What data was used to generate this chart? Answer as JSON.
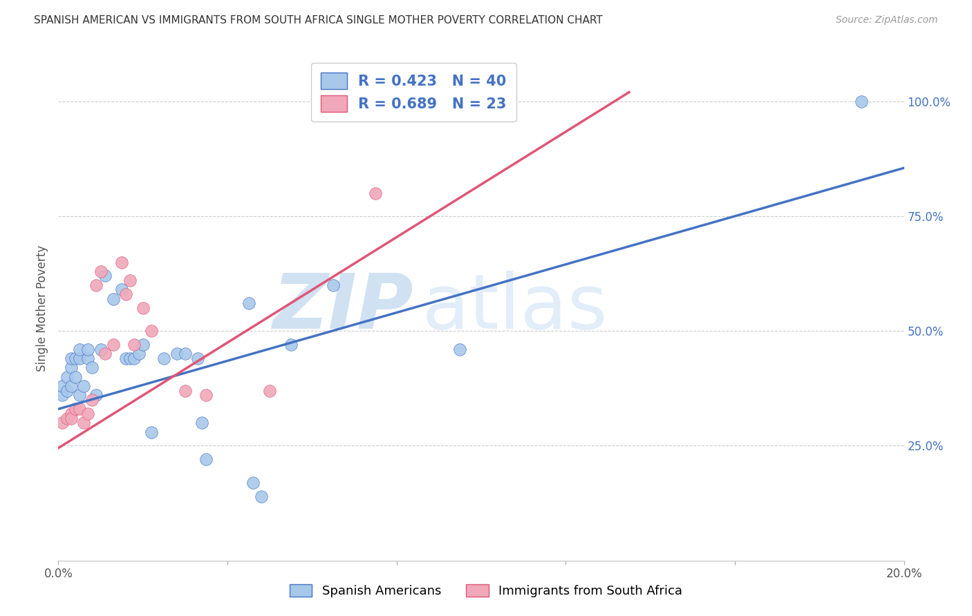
{
  "title": "SPANISH AMERICAN VS IMMIGRANTS FROM SOUTH AFRICA SINGLE MOTHER POVERTY CORRELATION CHART",
  "source": "Source: ZipAtlas.com",
  "ylabel": "Single Mother Poverty",
  "xlim": [
    0.0,
    0.2
  ],
  "ylim": [
    0.0,
    1.1
  ],
  "xtick_vals": [
    0.0,
    0.04,
    0.08,
    0.12,
    0.16,
    0.2
  ],
  "xtick_labels": [
    "0.0%",
    "",
    "",
    "",
    "",
    "20.0%"
  ],
  "ytick_labels_right": [
    "25.0%",
    "50.0%",
    "75.0%",
    "100.0%"
  ],
  "ytick_positions_right": [
    0.25,
    0.5,
    0.75,
    1.0
  ],
  "blue_R": 0.423,
  "blue_N": 40,
  "pink_R": 0.689,
  "pink_N": 23,
  "blue_color": "#A8C8EA",
  "pink_color": "#F0A8BA",
  "blue_line_color": "#4472C4",
  "pink_line_color": "#E05575",
  "legend_text_color": "#4472C4",
  "background_color": "#FFFFFF",
  "grid_color": "#CCCCCC",
  "watermark_zip": "ZIP",
  "watermark_atlas": "atlas",
  "blue_line_x0": 0.0,
  "blue_line_y0": 0.33,
  "blue_line_x1": 0.2,
  "blue_line_y1": 0.855,
  "pink_line_x0": 0.0,
  "pink_line_y0": 0.245,
  "pink_line_x1": 0.135,
  "pink_line_y1": 1.02,
  "blue_scatter_x": [
    0.001,
    0.001,
    0.002,
    0.002,
    0.003,
    0.003,
    0.003,
    0.004,
    0.004,
    0.005,
    0.005,
    0.005,
    0.006,
    0.007,
    0.007,
    0.008,
    0.009,
    0.01,
    0.011,
    0.013,
    0.015,
    0.016,
    0.017,
    0.018,
    0.019,
    0.02,
    0.022,
    0.025,
    0.028,
    0.03,
    0.033,
    0.034,
    0.035,
    0.045,
    0.046,
    0.048,
    0.055,
    0.065,
    0.095,
    0.19
  ],
  "blue_scatter_y": [
    0.36,
    0.38,
    0.37,
    0.4,
    0.38,
    0.42,
    0.44,
    0.4,
    0.44,
    0.36,
    0.44,
    0.46,
    0.38,
    0.44,
    0.46,
    0.42,
    0.36,
    0.46,
    0.62,
    0.57,
    0.59,
    0.44,
    0.44,
    0.44,
    0.45,
    0.47,
    0.28,
    0.44,
    0.45,
    0.45,
    0.44,
    0.3,
    0.22,
    0.56,
    0.17,
    0.14,
    0.47,
    0.6,
    0.46,
    1.0
  ],
  "pink_scatter_x": [
    0.001,
    0.002,
    0.003,
    0.003,
    0.004,
    0.005,
    0.006,
    0.007,
    0.008,
    0.009,
    0.01,
    0.011,
    0.013,
    0.015,
    0.016,
    0.017,
    0.018,
    0.02,
    0.022,
    0.03,
    0.035,
    0.05,
    0.075
  ],
  "pink_scatter_y": [
    0.3,
    0.31,
    0.32,
    0.31,
    0.33,
    0.33,
    0.3,
    0.32,
    0.35,
    0.6,
    0.63,
    0.45,
    0.47,
    0.65,
    0.58,
    0.61,
    0.47,
    0.55,
    0.5,
    0.37,
    0.36,
    0.37,
    0.8
  ]
}
